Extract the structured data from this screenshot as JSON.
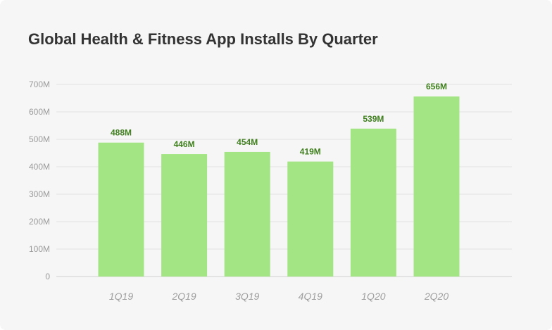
{
  "chart_data": {
    "type": "bar",
    "title": "Global Health & Fitness App Installs By Quarter",
    "categories": [
      "1Q19",
      "2Q19",
      "3Q19",
      "4Q19",
      "1Q20",
      "2Q20"
    ],
    "values": [
      488,
      446,
      454,
      419,
      539,
      656
    ],
    "data_labels": [
      "488M",
      "446M",
      "454M",
      "419M",
      "539M",
      "656M"
    ],
    "yticks": [
      0,
      100,
      200,
      300,
      400,
      500,
      600,
      700
    ],
    "ytick_labels": [
      "0",
      "100M",
      "200M",
      "300M",
      "400M",
      "500M",
      "600M",
      "700M"
    ],
    "ylim": [
      0,
      700
    ],
    "xlabel": "",
    "ylabel": "",
    "grid": true,
    "legend": "none",
    "colors": {
      "bar": "#a3e584",
      "data_label": "#3f7f1d",
      "grid": "#e3e3e3",
      "axis": "#d0d0d0"
    }
  }
}
